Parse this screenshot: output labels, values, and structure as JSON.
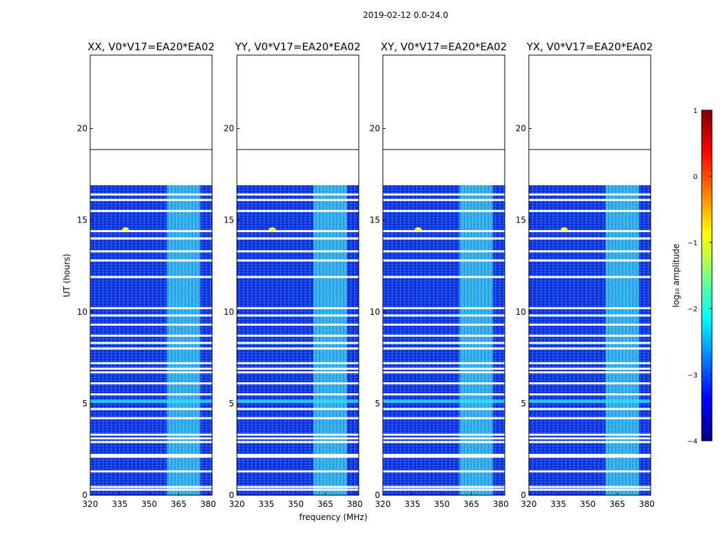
{
  "figure": {
    "suptitle": "2019-02-12 0.0-24.0",
    "xlabel": "frequency (MHz)",
    "ylabel": "UT (hours)"
  },
  "colorbar": {
    "label": "log₁₀ amplitude",
    "ticks": [
      1,
      0,
      -1,
      -2,
      -3,
      -4
    ],
    "range": [
      -4,
      1
    ],
    "colormap": [
      "#00007f",
      "#0000ff",
      "#007fff",
      "#00ffff",
      "#7fff7f",
      "#ffff00",
      "#ff7f00",
      "#ff0000",
      "#7f0000"
    ]
  },
  "chart_data": {
    "type": "heatmap",
    "panels": [
      {
        "title": "XX, V0*V17=EA20*EA02",
        "pol": "XX"
      },
      {
        "title": "YY, V0*V17=EA20*EA02",
        "pol": "YY"
      },
      {
        "title": "XY, V0*V17=EA20*EA02",
        "pol": "XY"
      },
      {
        "title": "YX, V0*V17=EA20*EA02",
        "pol": "YX"
      }
    ],
    "x_range_mhz": [
      320,
      382
    ],
    "x_ticks": [
      320,
      335,
      350,
      365,
      380
    ],
    "y_range_hours": [
      0,
      24
    ],
    "y_ticks": [
      0,
      5,
      10,
      15,
      20
    ],
    "data_coverage_hours": [
      0,
      16.9
    ],
    "horizontal_line_hours": 18.85,
    "background_level_log10": -3.2,
    "rfi_band_mhz": [
      359,
      376
    ],
    "rfi_band_level_log10": -1.9,
    "bright_spot": {
      "freq_mhz": 338,
      "ut_hours": 14.5,
      "level_log10": -0.8
    },
    "bright_row_hours": 5.1,
    "flagged_gaps_hours": [
      0.3,
      0.45,
      1.3,
      2.1,
      2.2,
      2.9,
      3.1,
      3.3,
      4.2,
      4.7,
      5.5,
      6.1,
      6.7,
      6.9,
      7.2,
      8.0,
      8.3,
      8.7,
      9.3,
      9.8,
      10.2,
      11.9,
      12.8,
      13.3,
      14.0,
      14.4,
      15.5,
      16.1,
      16.4
    ]
  }
}
